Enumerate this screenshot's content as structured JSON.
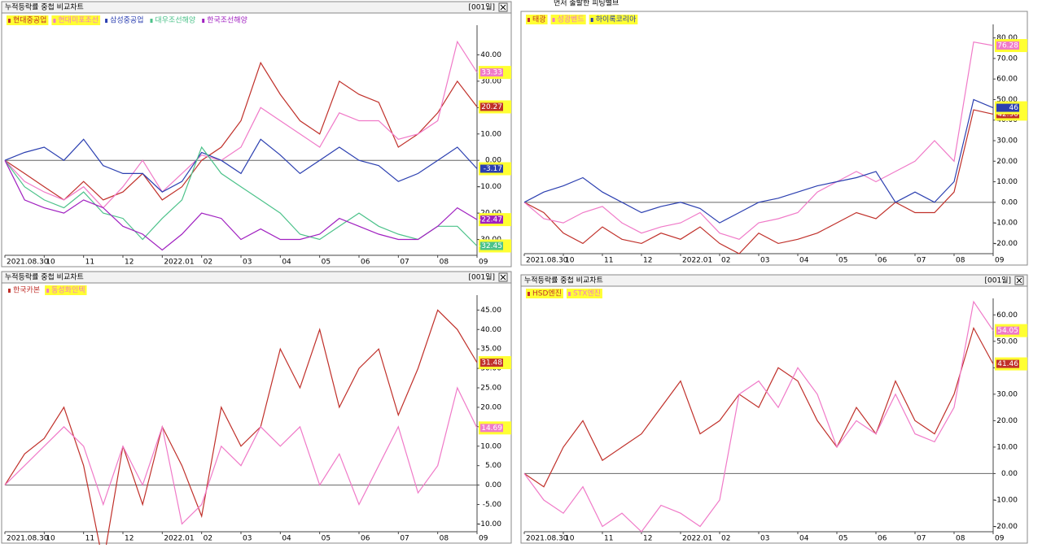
{
  "chart_data": [
    {
      "type": "line",
      "title": "누적등락률 중첩 비교차트",
      "period": "[001일]",
      "xlim": [
        0,
        24
      ],
      "xticks": [
        {
          "value": 0,
          "label": "2021.08.30"
        },
        {
          "value": 2,
          "label": "10"
        },
        {
          "value": 4,
          "label": "11"
        },
        {
          "value": 6,
          "label": "12"
        },
        {
          "value": 8,
          "label": "2022.01"
        },
        {
          "value": 10,
          "label": "02"
        },
        {
          "value": 12,
          "label": "03"
        },
        {
          "value": 14,
          "label": "04"
        },
        {
          "value": 16,
          "label": "05"
        },
        {
          "value": 18,
          "label": "06"
        },
        {
          "value": 20,
          "label": "07"
        },
        {
          "value": 22,
          "label": "08"
        },
        {
          "value": 24,
          "label": "09"
        }
      ],
      "ylim": [
        -36,
        50
      ],
      "yticks": [
        {
          "value": -30,
          "label": "-30.00"
        },
        {
          "value": -20,
          "label": "-20.00"
        },
        {
          "value": -10,
          "label": "-10.00"
        },
        {
          "value": 0,
          "label": "0.00"
        },
        {
          "value": 10,
          "label": "10.00"
        },
        {
          "value": 20,
          "label": "20.00"
        },
        {
          "value": 30,
          "label": "30.00"
        },
        {
          "value": 40,
          "label": "40.00"
        }
      ],
      "series": [
        {
          "name": "현대중공업",
          "color": "#c0302a",
          "highlight": true,
          "values": [
            0,
            -5,
            -10,
            -15,
            -8,
            -15,
            -12,
            -5,
            -15,
            -10,
            0,
            5,
            15,
            37,
            25,
            15,
            10,
            30,
            25,
            22,
            5,
            10,
            18,
            30,
            20.27
          ]
        },
        {
          "name": "현대미포조선",
          "color": "#f07ac8",
          "highlight": true,
          "values": [
            0,
            -8,
            -12,
            -15,
            -10,
            -18,
            -10,
            0,
            -12,
            -5,
            2,
            0,
            5,
            20,
            15,
            10,
            5,
            18,
            15,
            15,
            8,
            10,
            15,
            45,
            33.33
          ]
        },
        {
          "name": "삼성중공업",
          "color": "#2b3fb0",
          "highlight": false,
          "values": [
            0,
            3,
            5,
            0,
            8,
            -2,
            -5,
            -5,
            -12,
            -8,
            3,
            0,
            -5,
            8,
            2,
            -5,
            0,
            5,
            0,
            -2,
            -8,
            -5,
            0,
            5,
            -3.17
          ]
        },
        {
          "name": "대우조선해양",
          "color": "#4cc28a",
          "highlight": false,
          "values": [
            0,
            -10,
            -15,
            -18,
            -12,
            -20,
            -22,
            -30,
            -22,
            -15,
            5,
            -5,
            -10,
            -15,
            -20,
            -28,
            -30,
            -25,
            -20,
            -25,
            -28,
            -30,
            -25,
            -25,
            -32.45
          ]
        },
        {
          "name": "한국조선해양",
          "color": "#a020c0",
          "highlight": false,
          "values": [
            0,
            -15,
            -18,
            -20,
            -15,
            -18,
            -25,
            -28,
            -34,
            -28,
            -20,
            -22,
            -30,
            -26,
            -30,
            -30,
            -28,
            -22,
            -25,
            -28,
            -30,
            -30,
            -25,
            -18,
            -22.47
          ]
        }
      ]
    },
    {
      "type": "line",
      "annotation": "먼저 출발한 피팅밸브",
      "xlim": [
        0,
        24
      ],
      "xticks": [
        {
          "value": 0,
          "label": "2021.08.30"
        },
        {
          "value": 2,
          "label": "10"
        },
        {
          "value": 4,
          "label": "11"
        },
        {
          "value": 6,
          "label": "12"
        },
        {
          "value": 8,
          "label": "2022.01"
        },
        {
          "value": 10,
          "label": "02"
        },
        {
          "value": 12,
          "label": "03"
        },
        {
          "value": 14,
          "label": "04"
        },
        {
          "value": 16,
          "label": "05"
        },
        {
          "value": 18,
          "label": "06"
        },
        {
          "value": 20,
          "label": "07"
        },
        {
          "value": 22,
          "label": "08"
        },
        {
          "value": 24,
          "label": "09"
        }
      ],
      "ylim": [
        -25,
        85
      ],
      "yticks": [
        {
          "value": -20,
          "label": "-20.00"
        },
        {
          "value": -10,
          "label": "-10.00"
        },
        {
          "value": 0,
          "label": "0.00"
        },
        {
          "value": 10,
          "label": "10.00"
        },
        {
          "value": 20,
          "label": "20.00"
        },
        {
          "value": 30,
          "label": "30.00"
        },
        {
          "value": 40,
          "label": "40.00"
        },
        {
          "value": 50,
          "label": "50.00"
        },
        {
          "value": 60,
          "label": "60.00"
        },
        {
          "value": 70,
          "label": "70.00"
        },
        {
          "value": 80,
          "label": "80.00"
        }
      ],
      "series": [
        {
          "name": "태광",
          "color": "#c0302a",
          "highlight": true,
          "values": [
            0,
            -5,
            -15,
            -20,
            -12,
            -18,
            -20,
            -15,
            -18,
            -12,
            -20,
            -25,
            -15,
            -20,
            -18,
            -15,
            -10,
            -5,
            -8,
            0,
            -5,
            -5,
            5,
            45,
            42.9
          ],
          "value_labels": [
            null,
            null,
            null,
            null,
            null,
            null,
            null,
            null,
            null,
            null,
            null,
            null,
            null,
            null,
            null,
            null,
            null,
            null,
            null,
            null,
            null,
            null,
            null,
            null,
            "42.90"
          ]
        },
        {
          "name": "성광벤드",
          "color": "#f07ac8",
          "highlight": true,
          "values": [
            0,
            -8,
            -10,
            -5,
            -2,
            -10,
            -15,
            -12,
            -10,
            -5,
            -15,
            -18,
            -10,
            -8,
            -5,
            5,
            10,
            15,
            10,
            15,
            20,
            30,
            20,
            78,
            76.28
          ]
        },
        {
          "name": "하이록코리아",
          "color": "#2b3fb0",
          "highlight": true,
          "values": [
            0,
            5,
            8,
            12,
            5,
            0,
            -5,
            -2,
            0,
            -3,
            -10,
            -5,
            0,
            2,
            5,
            8,
            10,
            12,
            15,
            0,
            5,
            0,
            10,
            50,
            46
          ]
        }
      ]
    },
    {
      "type": "line",
      "title": "누적등락률 중첩 비교차트",
      "period": "[001일]",
      "xlim": [
        0,
        24
      ],
      "xticks": [
        {
          "value": 0,
          "label": "2021.08.30"
        },
        {
          "value": 2,
          "label": "10"
        },
        {
          "value": 4,
          "label": "11"
        },
        {
          "value": 6,
          "label": "12"
        },
        {
          "value": 8,
          "label": "2022.01"
        },
        {
          "value": 10,
          "label": "02"
        },
        {
          "value": 12,
          "label": "03"
        },
        {
          "value": 14,
          "label": "04"
        },
        {
          "value": 16,
          "label": "05"
        },
        {
          "value": 18,
          "label": "06"
        },
        {
          "value": 20,
          "label": "07"
        },
        {
          "value": 22,
          "label": "08"
        },
        {
          "value": 24,
          "label": "09"
        }
      ],
      "ylim": [
        -12,
        48
      ],
      "yticks": [
        {
          "value": -10,
          "label": "-10.00"
        },
        {
          "value": -5,
          "label": "-5.00"
        },
        {
          "value": 0,
          "label": "0.00"
        },
        {
          "value": 5,
          "label": "5.00"
        },
        {
          "value": 10,
          "label": "10.00"
        },
        {
          "value": 15,
          "label": "15.00"
        },
        {
          "value": 20,
          "label": "20.00"
        },
        {
          "value": 25,
          "label": "25.00"
        },
        {
          "value": 30,
          "label": "30.00"
        },
        {
          "value": 35,
          "label": "35.00"
        },
        {
          "value": 40,
          "label": "40.00"
        },
        {
          "value": 45,
          "label": "45.00"
        }
      ],
      "series": [
        {
          "name": "한국카본",
          "color": "#c0302a",
          "highlight": false,
          "values": [
            0,
            8,
            12,
            20,
            5,
            -20,
            10,
            -5,
            15,
            5,
            -8,
            20,
            10,
            15,
            35,
            25,
            40,
            20,
            30,
            35,
            18,
            30,
            45,
            40,
            31.48
          ]
        },
        {
          "name": "동성화인텍",
          "color": "#f07ac8",
          "highlight": true,
          "values": [
            0,
            5,
            10,
            15,
            10,
            -5,
            10,
            0,
            15,
            -10,
            -5,
            10,
            5,
            15,
            10,
            15,
            0,
            8,
            -5,
            5,
            15,
            -2,
            5,
            25,
            14.69
          ]
        }
      ]
    },
    {
      "type": "line",
      "title": "누적등락률 중첩 비교차트",
      "period": "[001일]",
      "xlim": [
        0,
        24
      ],
      "xticks": [
        {
          "value": 0,
          "label": "2021.08.30"
        },
        {
          "value": 2,
          "label": "10"
        },
        {
          "value": 4,
          "label": "11"
        },
        {
          "value": 6,
          "label": "12"
        },
        {
          "value": 8,
          "label": "2022.01"
        },
        {
          "value": 10,
          "label": "02"
        },
        {
          "value": 12,
          "label": "03"
        },
        {
          "value": 14,
          "label": "04"
        },
        {
          "value": 16,
          "label": "05"
        },
        {
          "value": 18,
          "label": "06"
        },
        {
          "value": 20,
          "label": "07"
        },
        {
          "value": 22,
          "label": "08"
        },
        {
          "value": 24,
          "label": "09"
        }
      ],
      "ylim": [
        -22,
        65
      ],
      "yticks": [
        {
          "value": -20,
          "label": "-20.00"
        },
        {
          "value": -10,
          "label": "-10.00"
        },
        {
          "value": 0,
          "label": "0.00"
        },
        {
          "value": 10,
          "label": "10.00"
        },
        {
          "value": 20,
          "label": "20.00"
        },
        {
          "value": 30,
          "label": "30.00"
        },
        {
          "value": 40,
          "label": "40.00"
        },
        {
          "value": 50,
          "label": "50.00"
        },
        {
          "value": 60,
          "label": "60.00"
        }
      ],
      "series": [
        {
          "name": "HSD엔진",
          "color": "#c0302a",
          "highlight": true,
          "values": [
            0,
            -5,
            10,
            20,
            5,
            10,
            15,
            25,
            35,
            15,
            20,
            30,
            25,
            40,
            35,
            20,
            10,
            25,
            15,
            35,
            20,
            15,
            30,
            55,
            41.46
          ]
        },
        {
          "name": "STX엔진",
          "color": "#f07ac8",
          "highlight": true,
          "values": [
            0,
            -10,
            -15,
            -5,
            -20,
            -15,
            -22,
            -12,
            -15,
            -20,
            -10,
            30,
            35,
            25,
            40,
            30,
            10,
            20,
            15,
            30,
            15,
            12,
            25,
            65,
            54.05
          ]
        }
      ]
    }
  ]
}
